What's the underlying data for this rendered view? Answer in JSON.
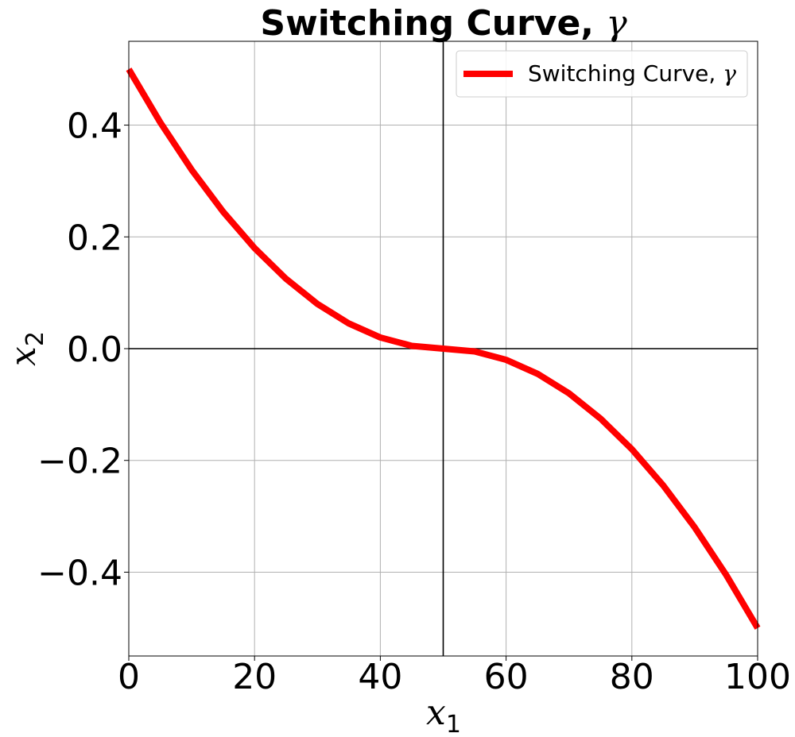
{
  "chart_data": {
    "type": "line",
    "title": "Switching Curve, ",
    "title_symbol": "γ",
    "xlabel": "x",
    "xlabel_sub": "1",
    "ylabel": "x",
    "ylabel_sub": "2",
    "xlim": [
      0,
      100
    ],
    "ylim": [
      -0.55,
      0.55
    ],
    "xticks": [
      0,
      20,
      40,
      60,
      80,
      100
    ],
    "yticks": [
      -0.4,
      -0.2,
      0.0,
      0.2,
      0.4
    ],
    "xtick_labels": [
      "0",
      "20",
      "40",
      "60",
      "80",
      "100"
    ],
    "ytick_labels": [
      "−0.4",
      "−0.2",
      "0.0",
      "0.2",
      "0.4"
    ],
    "grid": true,
    "reference_lines": {
      "vertical_x": 50,
      "horizontal_y": 0
    },
    "legend": {
      "position": "top-right",
      "label": "Switching Curve, ",
      "label_symbol": "γ"
    },
    "series": [
      {
        "name": "Switching Curve, γ",
        "color": "#ff0000",
        "x": [
          0,
          5,
          10,
          15,
          20,
          25,
          30,
          35,
          40,
          45,
          50,
          55,
          60,
          65,
          70,
          75,
          80,
          85,
          90,
          95,
          100
        ],
        "y": [
          0.5,
          0.405,
          0.32,
          0.245,
          0.18,
          0.125,
          0.08,
          0.045,
          0.02,
          0.005,
          0.0,
          -0.005,
          -0.02,
          -0.045,
          -0.08,
          -0.125,
          -0.18,
          -0.245,
          -0.32,
          -0.405,
          -0.5
        ]
      }
    ]
  }
}
